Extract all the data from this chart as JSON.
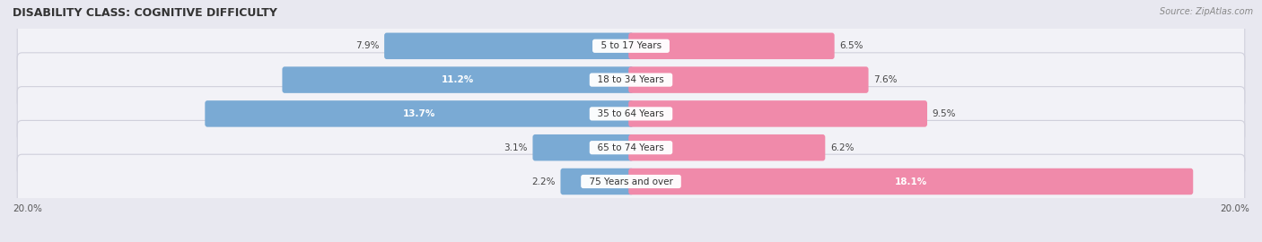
{
  "title": "DISABILITY CLASS: COGNITIVE DIFFICULTY",
  "source": "Source: ZipAtlas.com",
  "categories": [
    "5 to 17 Years",
    "18 to 34 Years",
    "35 to 64 Years",
    "65 to 74 Years",
    "75 Years and over"
  ],
  "male_values": [
    7.9,
    11.2,
    13.7,
    3.1,
    2.2
  ],
  "female_values": [
    6.5,
    7.6,
    9.5,
    6.2,
    18.1
  ],
  "max_val": 20.0,
  "male_color": "#7aaad4",
  "female_color": "#f08aaa",
  "bg_color": "#e8e8f0",
  "row_bg_color": "#f2f2f7",
  "row_outline_color": "#d0d0dc",
  "bar_height": 0.62,
  "inside_threshold_male": 10.5,
  "inside_threshold_female": 14.0,
  "title_fontsize": 9,
  "label_fontsize": 7.5,
  "cat_fontsize": 7.5
}
